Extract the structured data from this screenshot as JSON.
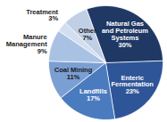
{
  "chart_data": {
    "type": "pie",
    "categories": [
      "Natural Gas and Petroleum Systems",
      "Enteric Fermentation",
      "Landfills",
      "Coal Mining",
      "Manure Management",
      "Treatment",
      "Other"
    ],
    "values": [
      30,
      23,
      17,
      11,
      9,
      3,
      7
    ],
    "value_labels": [
      "30%",
      "23%",
      "17%",
      "11%",
      "9%",
      "3%",
      "7%"
    ],
    "colors": [
      "#1f3864",
      "#2e5597",
      "#4a7bbf",
      "#7b9fd3",
      "#a9c1e3",
      "#d3def0",
      "#c0cfe6"
    ],
    "data_labels": true
  }
}
